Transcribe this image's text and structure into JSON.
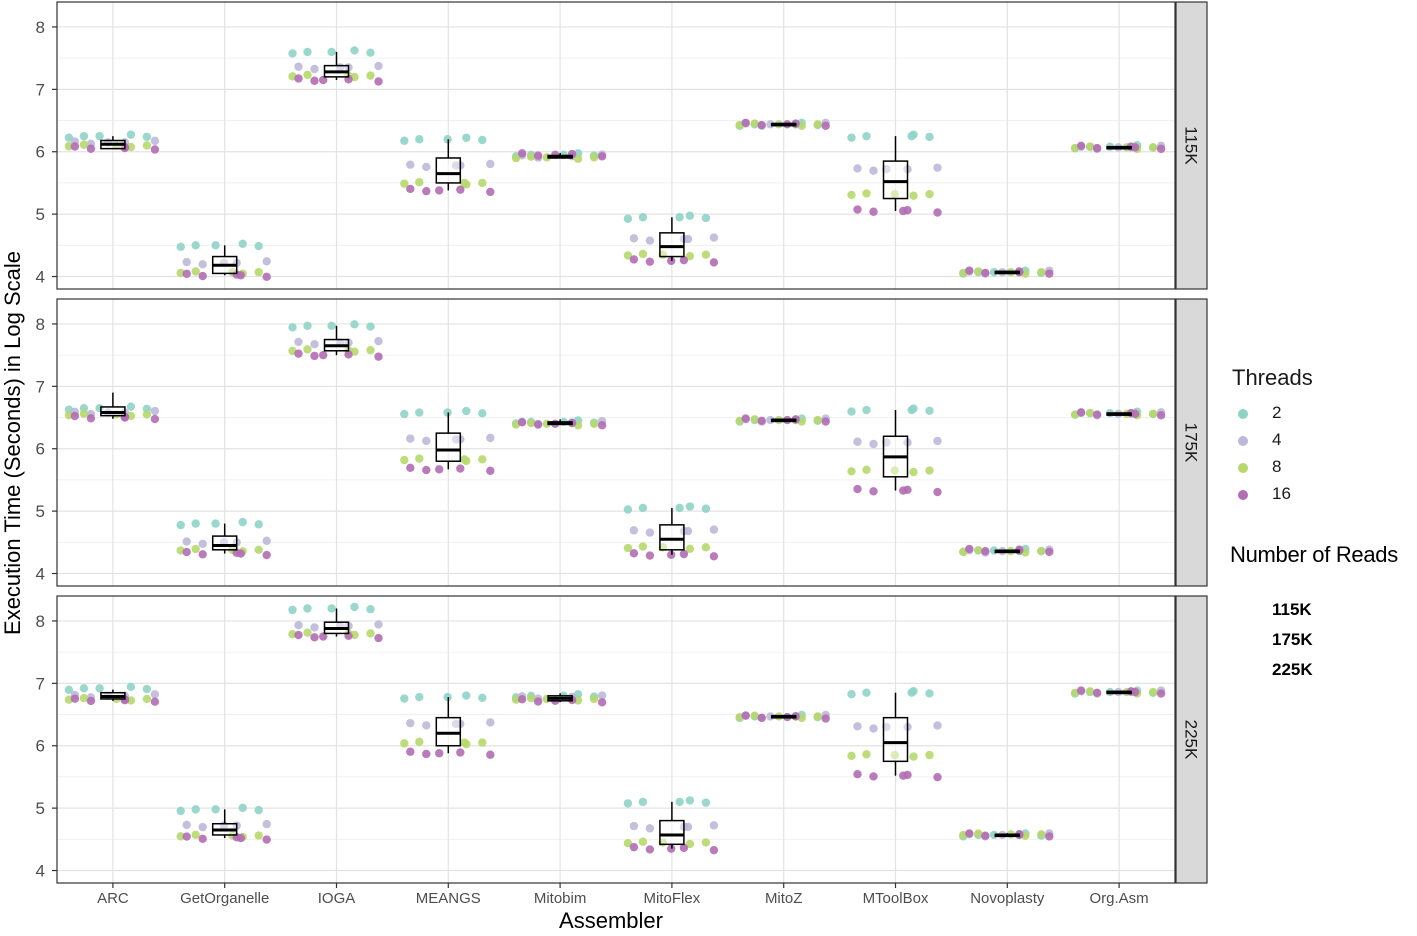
{
  "chart_data": {
    "type": "box-plot with jittered points, faceted by Number of Reads",
    "xlabel": "Assembler",
    "ylabel": "Execution Time (Seconds) in Log Scale",
    "categories": [
      "ARC",
      "GetOrganelle",
      "IOGA",
      "MEANGS",
      "Mitobim",
      "MitoFlex",
      "MitoZ",
      "MToolBox",
      "Novoplasty",
      "Org.Asm"
    ],
    "ylim": [
      3.8,
      8.4
    ],
    "yticks": [
      4,
      5,
      6,
      7,
      8
    ],
    "grid": true,
    "threads": {
      "title": "Threads",
      "levels": [
        "2",
        "4",
        "8",
        "16"
      ],
      "colors": [
        "#8fd3c6",
        "#bdb8d9",
        "#b6d86b",
        "#b26db4"
      ]
    },
    "number_of_reads_legend": {
      "title": "Number of Reads",
      "items": [
        "115K",
        "175K",
        "225K"
      ]
    },
    "panels": [
      {
        "label": "115K",
        "boxes": [
          {
            "q1": 6.05,
            "median": 6.12,
            "q3": 6.18,
            "whisker_low": 6.05,
            "whisker_high": 6.25
          },
          {
            "q1": 4.05,
            "median": 4.18,
            "q3": 4.32,
            "whisker_low": 4.02,
            "whisker_high": 4.5
          },
          {
            "q1": 7.2,
            "median": 7.28,
            "q3": 7.38,
            "whisker_low": 7.15,
            "whisker_high": 7.6
          },
          {
            "q1": 5.5,
            "median": 5.65,
            "q3": 5.9,
            "whisker_low": 5.38,
            "whisker_high": 6.2
          },
          {
            "q1": 5.9,
            "median": 5.92,
            "q3": 5.94,
            "whisker_low": 5.9,
            "whisker_high": 5.98
          },
          {
            "q1": 4.32,
            "median": 4.48,
            "q3": 4.7,
            "whisker_low": 4.25,
            "whisker_high": 4.95
          },
          {
            "q1": 6.43,
            "median": 6.44,
            "q3": 6.45,
            "whisker_low": 6.43,
            "whisker_high": 6.45
          },
          {
            "q1": 5.25,
            "median": 5.52,
            "q3": 5.85,
            "whisker_low": 5.05,
            "whisker_high": 6.25
          },
          {
            "q1": 4.06,
            "median": 4.07,
            "q3": 4.08,
            "whisker_low": 4.06,
            "whisker_high": 4.08
          },
          {
            "q1": 6.06,
            "median": 6.07,
            "q3": 6.08,
            "whisker_low": 6.05,
            "whisker_high": 6.09
          }
        ],
        "points": [
          [
            6.25,
            6.15,
            6.1,
            6.06
          ],
          [
            4.5,
            4.22,
            4.07,
            4.02
          ],
          [
            7.6,
            7.35,
            7.22,
            7.15
          ],
          [
            6.2,
            5.78,
            5.5,
            5.38
          ],
          [
            5.95,
            5.93,
            5.91,
            5.95
          ],
          [
            4.95,
            4.6,
            4.35,
            4.25
          ],
          [
            6.44,
            6.44,
            6.44,
            6.44
          ],
          [
            6.25,
            5.72,
            5.32,
            5.05
          ],
          [
            4.07,
            4.07,
            4.07,
            4.07
          ],
          [
            6.08,
            6.07,
            6.07,
            6.07
          ]
        ]
      },
      {
        "label": "175K",
        "boxes": [
          {
            "q1": 6.53,
            "median": 6.58,
            "q3": 6.67,
            "whisker_low": 6.48,
            "whisker_high": 6.9
          },
          {
            "q1": 4.38,
            "median": 4.45,
            "q3": 4.6,
            "whisker_low": 4.32,
            "whisker_high": 4.8
          },
          {
            "q1": 7.57,
            "median": 7.65,
            "q3": 7.75,
            "whisker_low": 7.5,
            "whisker_high": 7.97
          },
          {
            "q1": 5.8,
            "median": 5.98,
            "q3": 6.25,
            "whisker_low": 5.67,
            "whisker_high": 6.58
          },
          {
            "q1": 6.39,
            "median": 6.41,
            "q3": 6.43,
            "whisker_low": 6.38,
            "whisker_high": 6.47
          },
          {
            "q1": 4.38,
            "median": 4.55,
            "q3": 4.78,
            "whisker_low": 4.3,
            "whisker_high": 5.05
          },
          {
            "q1": 6.45,
            "median": 6.46,
            "q3": 6.47,
            "whisker_low": 6.45,
            "whisker_high": 6.47
          },
          {
            "q1": 5.55,
            "median": 5.87,
            "q3": 6.2,
            "whisker_low": 5.33,
            "whisker_high": 6.62
          },
          {
            "q1": 4.35,
            "median": 4.36,
            "q3": 4.37,
            "whisker_low": 4.35,
            "whisker_high": 4.38
          },
          {
            "q1": 6.55,
            "median": 6.56,
            "q3": 6.57,
            "whisker_low": 6.55,
            "whisker_high": 6.58
          }
        ],
        "points": [
          [
            6.65,
            6.58,
            6.55,
            6.5
          ],
          [
            4.8,
            4.5,
            4.38,
            4.32
          ],
          [
            7.97,
            7.7,
            7.58,
            7.5
          ],
          [
            6.58,
            6.15,
            5.83,
            5.67
          ],
          [
            6.43,
            6.42,
            6.4,
            6.4
          ],
          [
            5.05,
            4.68,
            4.42,
            4.3
          ],
          [
            6.46,
            6.46,
            6.46,
            6.46
          ],
          [
            6.62,
            6.1,
            5.65,
            5.33
          ],
          [
            4.37,
            4.36,
            4.36,
            4.37
          ],
          [
            6.57,
            6.56,
            6.56,
            6.56
          ]
        ]
      },
      {
        "label": "225K",
        "boxes": [
          {
            "q1": 6.75,
            "median": 6.79,
            "q3": 6.85,
            "whisker_low": 6.72,
            "whisker_high": 6.9
          },
          {
            "q1": 4.57,
            "median": 4.65,
            "q3": 4.75,
            "whisker_low": 4.52,
            "whisker_high": 4.98
          },
          {
            "q1": 7.8,
            "median": 7.88,
            "q3": 7.98,
            "whisker_low": 7.75,
            "whisker_high": 8.2
          },
          {
            "q1": 6.0,
            "median": 6.2,
            "q3": 6.45,
            "whisker_low": 5.88,
            "whisker_high": 6.78
          },
          {
            "q1": 6.72,
            "median": 6.76,
            "q3": 6.8,
            "whisker_low": 6.7,
            "whisker_high": 6.84
          },
          {
            "q1": 4.42,
            "median": 4.57,
            "q3": 4.8,
            "whisker_low": 4.35,
            "whisker_high": 5.1
          },
          {
            "q1": 6.46,
            "median": 6.47,
            "q3": 6.48,
            "whisker_low": 6.45,
            "whisker_high": 6.48
          },
          {
            "q1": 5.75,
            "median": 6.05,
            "q3": 6.45,
            "whisker_low": 5.52,
            "whisker_high": 6.85
          },
          {
            "q1": 4.56,
            "median": 4.57,
            "q3": 4.58,
            "whisker_low": 4.55,
            "whisker_high": 4.6
          },
          {
            "q1": 6.85,
            "median": 6.86,
            "q3": 6.87,
            "whisker_low": 6.85,
            "whisker_high": 6.88
          }
        ],
        "points": [
          [
            6.92,
            6.8,
            6.75,
            6.73
          ],
          [
            4.98,
            4.72,
            4.56,
            4.52
          ],
          [
            8.2,
            7.92,
            7.8,
            7.75
          ],
          [
            6.78,
            6.35,
            6.05,
            5.88
          ],
          [
            6.8,
            6.78,
            6.75,
            6.72
          ],
          [
            5.1,
            4.7,
            4.45,
            4.35
          ],
          [
            6.47,
            6.47,
            6.47,
            6.46
          ],
          [
            6.85,
            6.3,
            5.85,
            5.52
          ],
          [
            4.57,
            4.57,
            4.58,
            4.57
          ],
          [
            6.86,
            6.86,
            6.86,
            6.86
          ]
        ]
      }
    ]
  }
}
